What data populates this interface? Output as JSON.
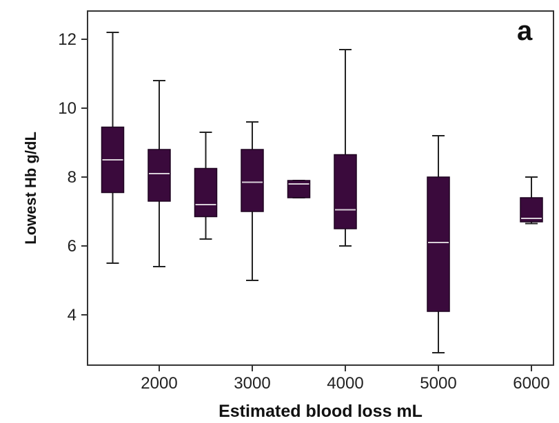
{
  "chart_data": {
    "type": "box",
    "panel_label": "a",
    "xlabel": "Estimated blood loss mL",
    "ylabel": "Lowest Hb g/dL",
    "x_ticks": [
      "2000",
      "3000",
      "4000",
      "5000",
      "6000"
    ],
    "y_ticks": [
      4,
      6,
      8,
      10,
      12
    ],
    "ylim": [
      2.5,
      12.9
    ],
    "grid": false,
    "colors": {
      "box": "#3a0a3c",
      "median": "#d8d0d8",
      "whisker": "#222222",
      "frame": "#333333"
    },
    "boxes": [
      {
        "x": 1500,
        "min": 5.5,
        "q1": 7.55,
        "median": 8.5,
        "q3": 9.45,
        "max": 12.2
      },
      {
        "x": 2000,
        "min": 5.4,
        "q1": 7.3,
        "median": 8.1,
        "q3": 8.8,
        "max": 10.8
      },
      {
        "x": 2500,
        "min": 6.2,
        "q1": 6.85,
        "median": 7.2,
        "q3": 8.25,
        "max": 9.3
      },
      {
        "x": 3000,
        "min": 5.0,
        "q1": 7.0,
        "median": 7.85,
        "q3": 8.8,
        "max": 9.6
      },
      {
        "x": 3500,
        "min": 7.4,
        "q1": 7.4,
        "median": 7.8,
        "q3": 7.9,
        "max": 7.9
      },
      {
        "x": 4000,
        "min": 6.0,
        "q1": 6.5,
        "median": 7.05,
        "q3": 8.65,
        "max": 11.7
      },
      {
        "x": 5000,
        "min": 2.9,
        "q1": 4.1,
        "median": 6.1,
        "q3": 8.0,
        "max": 9.2
      },
      {
        "x": 6000,
        "min": 6.65,
        "q1": 6.7,
        "median": 6.8,
        "q3": 7.4,
        "max": 8.0
      }
    ]
  }
}
